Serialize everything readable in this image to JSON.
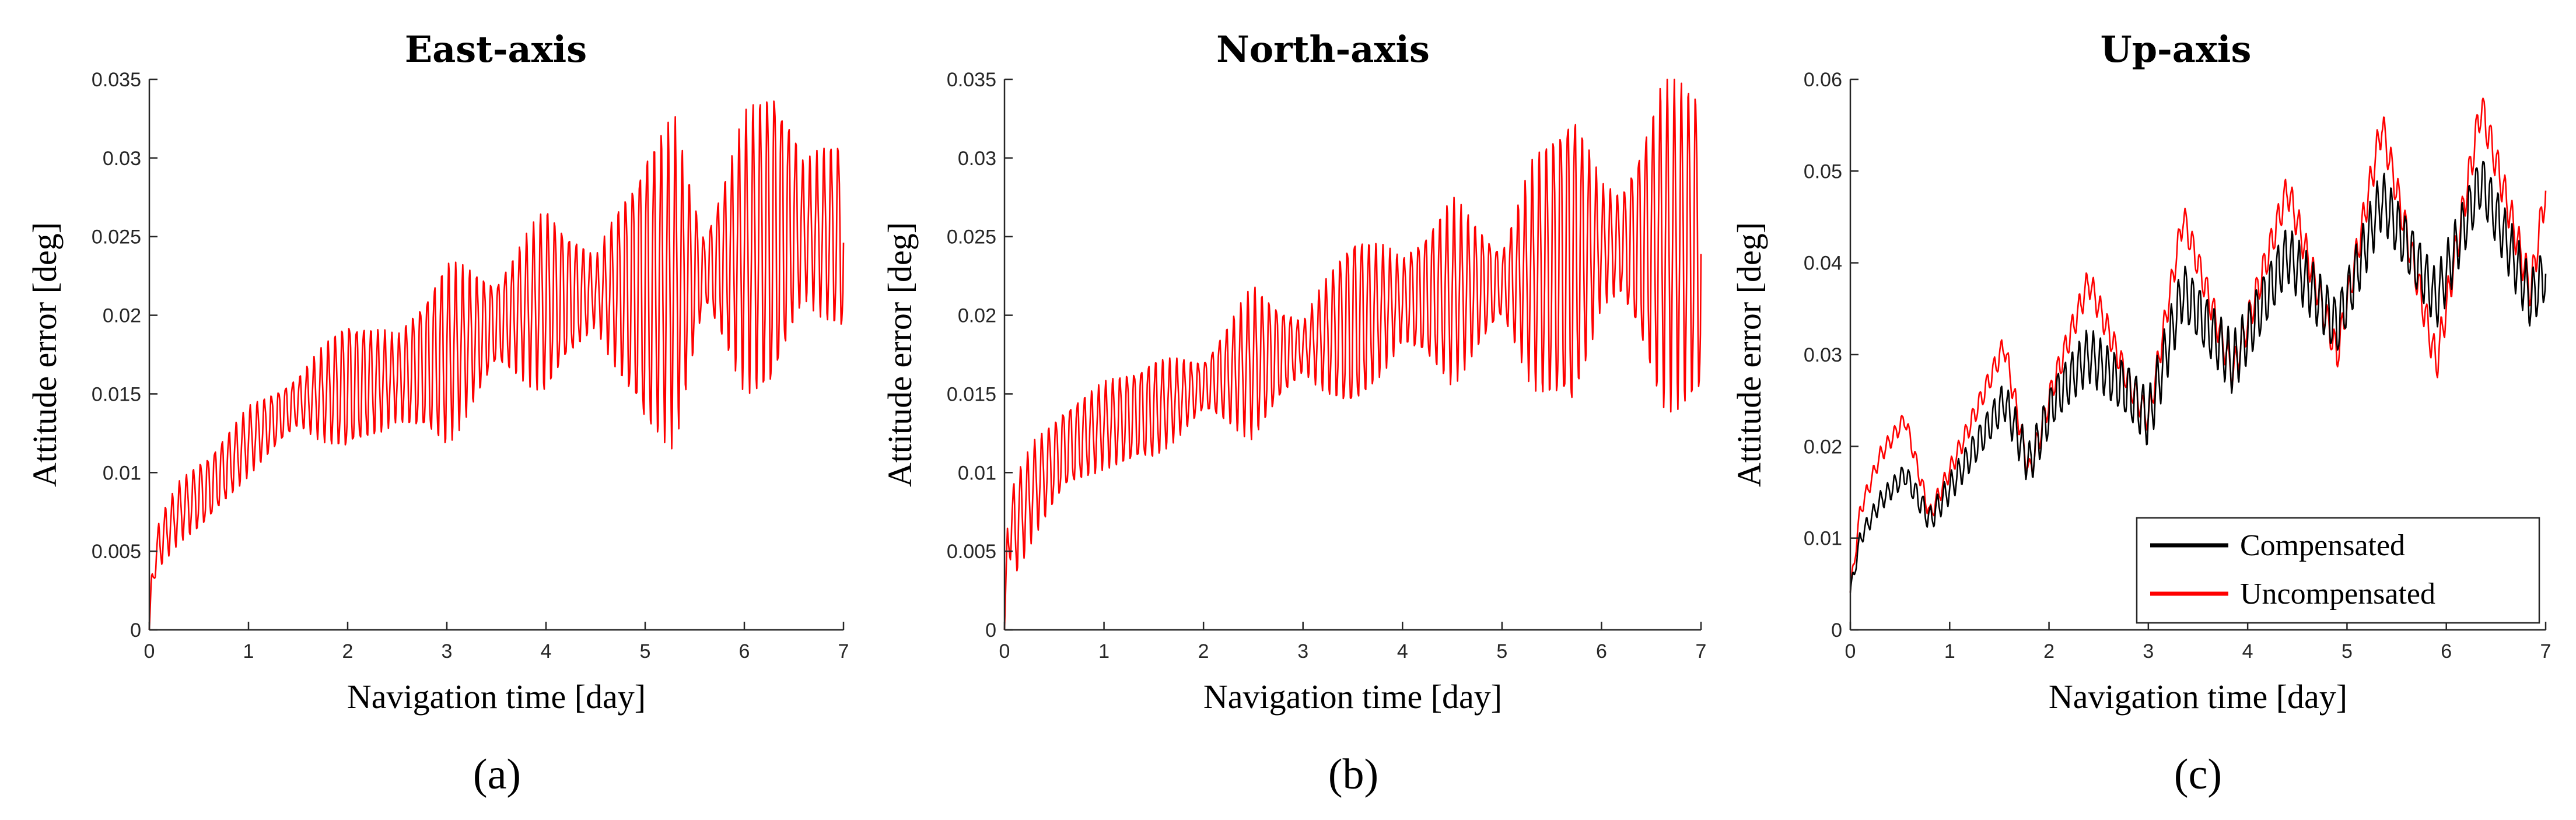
{
  "chart_data": [
    {
      "type": "line",
      "title": "East-axis",
      "xlabel": "Navigation time [day]",
      "ylabel": "Attitude error [deg]",
      "caption": "(a)",
      "xlim": [
        0,
        7
      ],
      "ylim": [
        0,
        0.035
      ],
      "xticks": [
        0,
        1,
        2,
        3,
        4,
        5,
        6,
        7
      ],
      "xtick_labels": [
        "0",
        "1",
        "2",
        "3",
        "4",
        "5",
        "6",
        "7"
      ],
      "yticks": [
        0,
        0.005,
        0.01,
        0.015,
        0.02,
        0.025,
        0.03,
        0.035
      ],
      "ytick_labels": [
        "0",
        "0.005",
        "0.01",
        "0.015",
        "0.02",
        "0.025",
        "0.03",
        "0.035"
      ],
      "series": [
        {
          "name": "Uncompensated",
          "color": "#ff0000",
          "trend_x": [
            0,
            0.02,
            0.1,
            0.3,
            0.6,
            1.0,
            1.5,
            2.0,
            2.5,
            3.0,
            3.5,
            4.0,
            4.5,
            5.0,
            5.5,
            6.0,
            6.5,
            7.0
          ],
          "trend_y": [
            0.0,
            0.003,
            0.0055,
            0.0075,
            0.009,
            0.012,
            0.0145,
            0.0155,
            0.016,
            0.0175,
            0.0195,
            0.021,
            0.0215,
            0.0215,
            0.0225,
            0.024,
            0.0255,
            0.025
          ],
          "amp_x": [
            0,
            0.1,
            0.5,
            1.0,
            1.5,
            2.0,
            2.5,
            3.0,
            3.5,
            4.0,
            4.5,
            5.0,
            5.3,
            5.6,
            6.0,
            6.3,
            6.6,
            7.0
          ],
          "amp_y": [
            0.0,
            0.0015,
            0.002,
            0.002,
            0.0015,
            0.004,
            0.0025,
            0.0055,
            0.0025,
            0.0055,
            0.002,
            0.0085,
            0.0095,
            0.002,
            0.008,
            0.0095,
            0.004,
            0.006
          ],
          "cycles_per_day": 14,
          "first_point": [
            0,
            0.0
          ]
        }
      ]
    },
    {
      "type": "line",
      "title": "North-axis",
      "xlabel": "Navigation time [day]",
      "ylabel": "Attitude error [deg]",
      "caption": "(b)",
      "xlim": [
        0,
        7
      ],
      "ylim": [
        0,
        0.035
      ],
      "xticks": [
        0,
        1,
        2,
        3,
        4,
        5,
        6,
        7
      ],
      "xtick_labels": [
        "0",
        "1",
        "2",
        "3",
        "4",
        "5",
        "6",
        "7"
      ],
      "yticks": [
        0,
        0.005,
        0.01,
        0.015,
        0.02,
        0.025,
        0.03,
        0.035
      ],
      "ytick_labels": [
        "0",
        "0.005",
        "0.01",
        "0.015",
        "0.02",
        "0.025",
        "0.03",
        "0.035"
      ],
      "series": [
        {
          "name": "Uncompensated",
          "color": "#ff0000",
          "trend_x": [
            0,
            0.03,
            0.1,
            0.3,
            0.6,
            1.0,
            1.5,
            2.0,
            2.5,
            3.0,
            3.5,
            4.0,
            4.5,
            5.0,
            5.5,
            6.0,
            6.5,
            7.0
          ],
          "trend_y": [
            0.0,
            0.006,
            0.0065,
            0.009,
            0.0115,
            0.013,
            0.014,
            0.0155,
            0.017,
            0.018,
            0.0195,
            0.021,
            0.0215,
            0.022,
            0.023,
            0.0245,
            0.0245,
            0.0245
          ],
          "amp_x": [
            0,
            0.1,
            0.5,
            1.0,
            1.5,
            2.0,
            2.5,
            3.0,
            3.5,
            4.0,
            4.5,
            5.0,
            5.3,
            5.7,
            6.0,
            6.2,
            6.6,
            7.0
          ],
          "amp_y": [
            0.0,
            0.003,
            0.0025,
            0.0025,
            0.003,
            0.0015,
            0.0045,
            0.0015,
            0.0055,
            0.0025,
            0.0055,
            0.002,
            0.0065,
            0.0095,
            0.0035,
            0.003,
            0.0095,
            0.0095
          ],
          "cycles_per_day": 14,
          "first_point": [
            0,
            0.0
          ]
        }
      ]
    },
    {
      "type": "line",
      "title": "Up-axis",
      "xlabel": "Navigation time [day]",
      "ylabel": "Attitude error [deg]",
      "caption": "(c)",
      "xlim": [
        0,
        7
      ],
      "ylim": [
        0,
        0.06
      ],
      "xticks": [
        0,
        1,
        2,
        3,
        4,
        5,
        6,
        7
      ],
      "xtick_labels": [
        "0",
        "1",
        "2",
        "3",
        "4",
        "5",
        "6",
        "7"
      ],
      "yticks": [
        0,
        0.01,
        0.02,
        0.03,
        0.04,
        0.05,
        0.06
      ],
      "ytick_labels": [
        "0",
        "0.01",
        "0.02",
        "0.03",
        "0.04",
        "0.05",
        "0.06"
      ],
      "legend": {
        "location": "bottom-right",
        "entries": [
          {
            "label": "Compensated",
            "color": "#000000"
          },
          {
            "label": "Uncompensated",
            "color": "#ff0000"
          }
        ]
      },
      "series": [
        {
          "name": "Uncompensated",
          "color": "#ff0000",
          "trend_x": [
            0,
            0.1,
            0.3,
            0.55,
            0.8,
            1.15,
            1.55,
            1.8,
            2.05,
            2.4,
            2.8,
            3.0,
            3.35,
            3.85,
            4.4,
            4.9,
            5.35,
            5.9,
            6.35,
            6.85,
            7.0
          ],
          "trend_y": [
            0.004,
            0.013,
            0.019,
            0.023,
            0.0125,
            0.021,
            0.031,
            0.017,
            0.027,
            0.038,
            0.027,
            0.023,
            0.045,
            0.028,
            0.048,
            0.03,
            0.055,
            0.029,
            0.057,
            0.037,
            0.048
          ],
          "amp_x": [
            0,
            1.0,
            2.0,
            3.0,
            4.0,
            5.0,
            6.0,
            7.0
          ],
          "amp_y": [
            0.0008,
            0.001,
            0.0015,
            0.0015,
            0.0018,
            0.0018,
            0.002,
            0.002
          ],
          "cycles_per_day": 14
        },
        {
          "name": "Compensated",
          "color": "#000000",
          "trend_x": [
            0,
            0.1,
            0.3,
            0.55,
            0.8,
            1.15,
            1.55,
            1.8,
            2.05,
            2.4,
            2.8,
            3.0,
            3.35,
            3.85,
            4.4,
            4.9,
            5.35,
            5.9,
            6.35,
            6.85,
            7.0
          ],
          "trend_y": [
            0.004,
            0.01,
            0.014,
            0.017,
            0.012,
            0.018,
            0.025,
            0.018,
            0.025,
            0.03,
            0.026,
            0.023,
            0.037,
            0.029,
            0.041,
            0.033,
            0.047,
            0.036,
            0.049,
            0.036,
            0.039
          ],
          "amp_x": [
            0,
            1.0,
            2.0,
            3.0,
            4.0,
            5.0,
            6.0,
            7.0
          ],
          "amp_y": [
            0.0008,
            0.0015,
            0.0025,
            0.003,
            0.003,
            0.003,
            0.003,
            0.003
          ],
          "cycles_per_day": 14
        }
      ]
    }
  ]
}
